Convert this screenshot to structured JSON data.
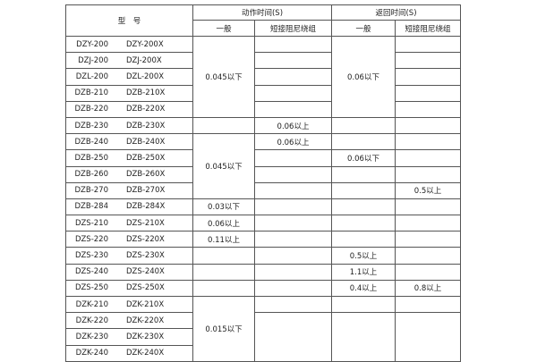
{
  "header": {
    "model": "型　号",
    "action_time": "动作时间(S)",
    "return_time": "返回时间(S)",
    "general": "一般",
    "short_damping": "短接阻尼绕组"
  },
  "rows": [
    {
      "a": "DZY-200",
      "b": "DZY-200X"
    },
    {
      "a": "DZJ-200",
      "b": "DZJ-200X"
    },
    {
      "a": "DZL-200",
      "b": "DZL-200X"
    },
    {
      "a": "DZB-210",
      "b": "DZB-210X"
    },
    {
      "a": "DZB-220",
      "b": "DZB-220X"
    },
    {
      "a": "DZB-230",
      "b": "DZB-230X"
    },
    {
      "a": "DZB-240",
      "b": "DZB-240X"
    },
    {
      "a": "DZB-250",
      "b": "DZB-250X"
    },
    {
      "a": "DZB-260",
      "b": "DZB-260X"
    },
    {
      "a": "DZB-270",
      "b": "DZB-270X"
    },
    {
      "a": "DZB-284",
      "b": "DZB-284X"
    },
    {
      "a": "DZS-210",
      "b": "DZS-210X"
    },
    {
      "a": "DZS-220",
      "b": "DZS-220X"
    },
    {
      "a": "DZS-230",
      "b": "DZS-230X"
    },
    {
      "a": "DZS-240",
      "b": "DZS-240X"
    },
    {
      "a": "DZS-250",
      "b": "DZS-250X"
    },
    {
      "a": "DZK-210",
      "b": "DZK-210X"
    },
    {
      "a": "DZK-220",
      "b": "DZK-220X"
    },
    {
      "a": "DZK-230",
      "b": "DZK-230X"
    },
    {
      "a": "DZK-240",
      "b": "DZK-240X"
    }
  ],
  "values": {
    "act_gen_group1": "0.045以下",
    "ret_gen_group1": "0.06以下",
    "act_short_230": "0.06以上",
    "act_short_240": "0.06以上",
    "act_gen_group2": "0.045以下",
    "ret_gen_250": "0.06以下",
    "ret_short_270": "0.5以上",
    "act_gen_284": "0.03以下",
    "act_gen_s210": "0.06以上",
    "act_gen_s220": "0.11以上",
    "ret_gen_s230": "0.5以上",
    "ret_gen_s240": "1.1以上",
    "ret_gen_s250": "0.4以上",
    "ret_short_s250": "0.8以上",
    "act_gen_k": "0.015以下"
  }
}
